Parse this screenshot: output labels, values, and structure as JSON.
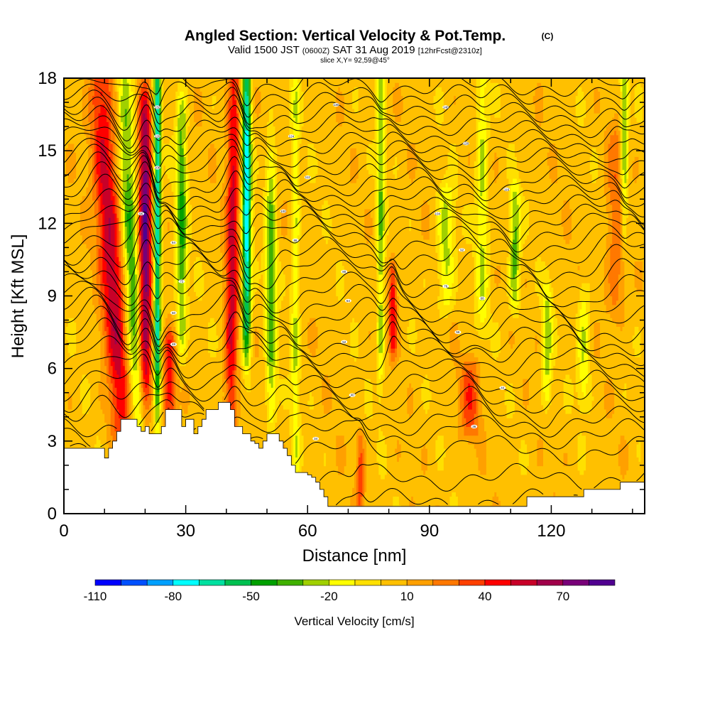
{
  "chart_data": {
    "type": "heatmap",
    "title": "Angled Section: Vertical Velocity & Pot.Temp.",
    "title_mark": "(C)",
    "subtitle": {
      "prefix": "Valid 1500 JST",
      "zulu": "(0600Z)",
      "date": "SAT 31 Aug 2019",
      "forecast": "[12hrFcst@2310z]"
    },
    "slice": "slice X,Y= 92,59@45°",
    "xlabel": "Distance [nm]",
    "ylabel": "Height [Kft MSL]",
    "xlim": [
      0,
      143
    ],
    "ylim": [
      0,
      18
    ],
    "x_ticks": [
      0,
      30,
      60,
      90,
      120
    ],
    "y_ticks": [
      0,
      3,
      6,
      9,
      12,
      15,
      18
    ],
    "colorbar": {
      "label": "Vertical Velocity [cm/s]",
      "tick_labels": [
        "-110",
        "-80",
        "-50",
        "-20",
        "10",
        "40",
        "70"
      ],
      "colors": [
        "#0000ff",
        "#0050ff",
        "#00a0ff",
        "#00ffff",
        "#00e0a0",
        "#00c050",
        "#00a000",
        "#40b000",
        "#a0d000",
        "#ffff00",
        "#ffe000",
        "#ffc000",
        "#ffa000",
        "#ff7800",
        "#ff4000",
        "#ff0000",
        "#c80028",
        "#a0004a",
        "#780078",
        "#500090"
      ]
    },
    "background_velocity": 5,
    "updraft_bands": [
      {
        "x_top": 9,
        "x_bottom": 14,
        "width": 3.0,
        "peak": 55,
        "y_range": [
          5,
          17
        ]
      },
      {
        "x_top": 20,
        "x_bottom": 20,
        "width": 1.6,
        "peak": 75,
        "y_range": [
          6,
          16
        ]
      },
      {
        "x_top": 26,
        "x_bottom": 26,
        "width": 1.5,
        "peak": 45,
        "y_range": [
          3.8,
          7
        ]
      },
      {
        "x_top": 42,
        "x_bottom": 41,
        "width": 1.6,
        "peak": 50,
        "y_range": [
          4.5,
          18
        ]
      },
      {
        "x_top": 81,
        "x_bottom": 81,
        "width": 1.0,
        "peak": 45,
        "y_range": [
          7,
          10
        ]
      },
      {
        "x_top": 100,
        "x_bottom": 100,
        "width": 2.5,
        "peak": 30,
        "y_range": [
          3.5,
          6
        ]
      },
      {
        "x_top": 73,
        "x_bottom": 73,
        "width": 1.0,
        "peak": 30,
        "y_range": [
          0.5,
          3
        ]
      },
      {
        "x_top": 136,
        "x_bottom": 136,
        "width": 2.5,
        "peak": 25,
        "y_range": [
          9,
          15
        ]
      }
    ],
    "downdraft_bands": [
      {
        "x_top": 15,
        "x_bottom": 18,
        "width": 2.0,
        "peak": -45,
        "y_range": [
          4,
          17
        ]
      },
      {
        "x_top": 23,
        "x_bottom": 23,
        "width": 0.9,
        "peak": -80,
        "y_range": [
          6,
          18
        ]
      },
      {
        "x_top": 29,
        "x_bottom": 29,
        "width": 1.3,
        "peak": -45,
        "y_range": [
          8,
          16
        ]
      },
      {
        "x_top": 45,
        "x_bottom": 45,
        "width": 1.1,
        "peak": -85,
        "y_range": [
          8,
          18
        ]
      },
      {
        "x_top": 51,
        "x_bottom": 51,
        "width": 1.3,
        "peak": -40,
        "y_range": [
          5,
          14
        ]
      },
      {
        "x_top": 57,
        "x_bottom": 57,
        "width": 1.0,
        "peak": -25,
        "y_range": [
          1,
          18
        ]
      },
      {
        "x_top": 78,
        "x_bottom": 78,
        "width": 1.0,
        "peak": -35,
        "y_range": [
          7,
          18
        ]
      },
      {
        "x_top": 94,
        "x_bottom": 94,
        "width": 2.0,
        "peak": -30,
        "y_range": [
          9,
          13
        ]
      },
      {
        "x_top": 103,
        "x_bottom": 103,
        "width": 1.5,
        "peak": -28,
        "y_range": [
          9,
          18
        ]
      },
      {
        "x_top": 111,
        "x_bottom": 111,
        "width": 1.3,
        "peak": -40,
        "y_range": [
          9,
          13
        ]
      },
      {
        "x_top": 119,
        "x_bottom": 119,
        "width": 1.2,
        "peak": -30,
        "y_range": [
          5,
          9
        ]
      },
      {
        "x_top": 128,
        "x_bottom": 128,
        "width": 1.5,
        "peak": -25,
        "y_range": [
          5,
          9
        ]
      },
      {
        "x_top": 138,
        "x_bottom": 138,
        "width": 1.0,
        "peak": -40,
        "y_range": [
          12,
          18
        ]
      }
    ],
    "terrain": [
      [
        0,
        2.7
      ],
      [
        9,
        2.7
      ],
      [
        10,
        2.3
      ],
      [
        11,
        2.7
      ],
      [
        12,
        3.0
      ],
      [
        13,
        3.4
      ],
      [
        14,
        3.9
      ],
      [
        17,
        3.9
      ],
      [
        18,
        3.6
      ],
      [
        19,
        3.4
      ],
      [
        20,
        3.6
      ],
      [
        21,
        3.3
      ],
      [
        23,
        3.3
      ],
      [
        24,
        3.6
      ],
      [
        25,
        4.3
      ],
      [
        28,
        4.3
      ],
      [
        29,
        3.6
      ],
      [
        30,
        3.9
      ],
      [
        32,
        3.3
      ],
      [
        33,
        3.6
      ],
      [
        34,
        3.9
      ],
      [
        35,
        4.3
      ],
      [
        37,
        4.3
      ],
      [
        38,
        4.6
      ],
      [
        40,
        4.6
      ],
      [
        41,
        4.3
      ],
      [
        42,
        3.6
      ],
      [
        43,
        3.6
      ],
      [
        44,
        3.3
      ],
      [
        45,
        3.3
      ],
      [
        46,
        3.0
      ],
      [
        47,
        2.9
      ],
      [
        48,
        2.7
      ],
      [
        49,
        3.0
      ],
      [
        50,
        3.3
      ],
      [
        52,
        3.3
      ],
      [
        53,
        3.0
      ],
      [
        54,
        2.7
      ],
      [
        55,
        2.4
      ],
      [
        56,
        2.0
      ],
      [
        57,
        1.7
      ],
      [
        59,
        1.7
      ],
      [
        60,
        1.6
      ],
      [
        61,
        1.5
      ],
      [
        62,
        1.3
      ],
      [
        63,
        1.0
      ],
      [
        64,
        0.7
      ],
      [
        65,
        0.3
      ],
      [
        113,
        0.3
      ],
      [
        114,
        0.7
      ],
      [
        127,
        0.7
      ],
      [
        128,
        1.0
      ],
      [
        136,
        1.0
      ],
      [
        137,
        1.3
      ],
      [
        143,
        1.3
      ]
    ],
    "isentrope_heights_kft": [
      0.5,
      1.5,
      2.6,
      3.3,
      3.8,
      4.3,
      4.8,
      5.3,
      5.8,
      6.3,
      6.8,
      7.2,
      7.7,
      8.2,
      8.7,
      9.2,
      9.7,
      10.2,
      10.7,
      11.2,
      11.7,
      12.1,
      12.5,
      12.9,
      13.3,
      13.7,
      14.1,
      14.5,
      14.9,
      15.3,
      15.7,
      16.1,
      16.5,
      16.9,
      17.3,
      17.7
    ],
    "isentrope_labels": [
      {
        "text": "34",
        "x": 62,
        "y": 3.1
      },
      {
        "text": "36",
        "x": 101,
        "y": 3.6
      },
      {
        "text": "40",
        "x": 71,
        "y": 4.9
      },
      {
        "text": "44",
        "x": 108,
        "y": 5.2
      },
      {
        "text": "48",
        "x": 27,
        "y": 7.0
      },
      {
        "text": "52",
        "x": 69,
        "y": 7.1
      },
      {
        "text": "56",
        "x": 97,
        "y": 7.5
      },
      {
        "text": "60",
        "x": 27,
        "y": 8.3
      },
      {
        "text": "64",
        "x": 70,
        "y": 8.8
      },
      {
        "text": "68",
        "x": 103,
        "y": 8.9
      },
      {
        "text": "72",
        "x": 29,
        "y": 9.6
      },
      {
        "text": "76",
        "x": 94,
        "y": 9.4
      },
      {
        "text": "80",
        "x": 69,
        "y": 10.0
      },
      {
        "text": "84",
        "x": 27,
        "y": 11.2
      },
      {
        "text": "88",
        "x": 57,
        "y": 11.3
      },
      {
        "text": "92",
        "x": 98,
        "y": 10.9
      },
      {
        "text": "96",
        "x": 19,
        "y": 12.4
      },
      {
        "text": "100",
        "x": 54,
        "y": 12.5
      },
      {
        "text": "104",
        "x": 92,
        "y": 12.4
      },
      {
        "text": "108",
        "x": 23,
        "y": 14.3
      },
      {
        "text": "112",
        "x": 60,
        "y": 13.9
      },
      {
        "text": "116",
        "x": 109,
        "y": 13.4
      },
      {
        "text": "120",
        "x": 23,
        "y": 15.6
      },
      {
        "text": "124",
        "x": 56,
        "y": 15.6
      },
      {
        "text": "128",
        "x": 99,
        "y": 15.3
      },
      {
        "text": "132",
        "x": 23,
        "y": 16.8
      },
      {
        "text": "136",
        "x": 67,
        "y": 16.9
      },
      {
        "text": "140",
        "x": 94,
        "y": 16.8
      }
    ]
  }
}
